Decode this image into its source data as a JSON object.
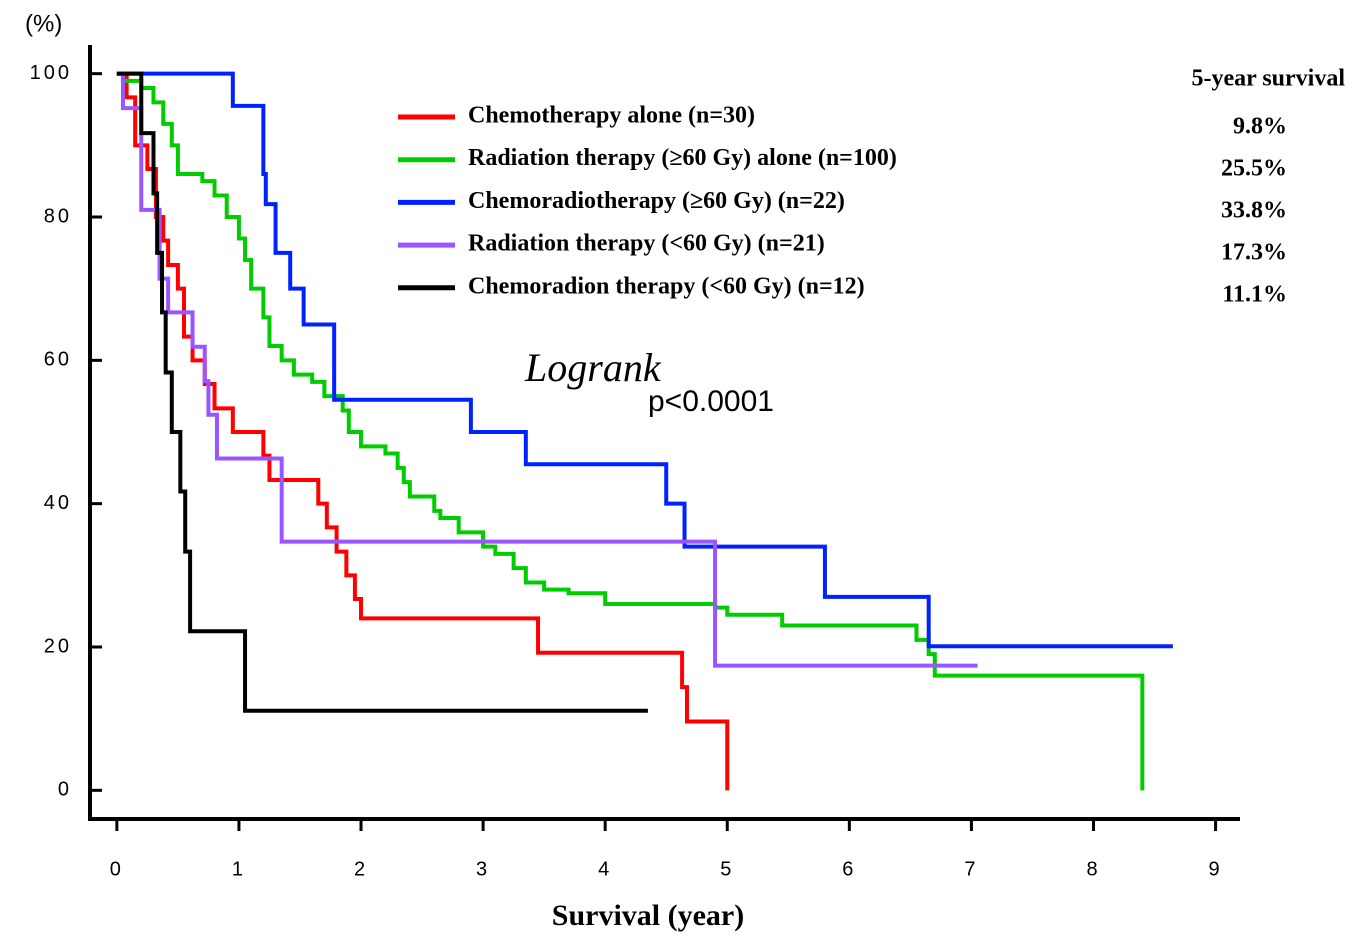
{
  "chart_data": {
    "type": "step",
    "y_label": "(%)",
    "x_label": "Survival (year)",
    "annotation_italic": "Logrank",
    "annotation": "p<0.0001",
    "xlim": [
      -0.22,
      9.2
    ],
    "ylim": [
      -4,
      104
    ],
    "xticks": [
      0,
      1,
      2,
      3,
      4,
      5,
      6,
      7,
      8,
      9
    ],
    "yticks": [
      0,
      20,
      40,
      60,
      80,
      100
    ],
    "five_year_survival": {
      "title": "5-year survival",
      "labels": [
        "9.8%",
        "25.5%",
        "33.8%",
        "17.3%",
        "11.1%"
      ]
    },
    "series": [
      {
        "name": "Chemotherapy alone (n=30)",
        "color": "#ff0000",
        "x": [
          0,
          0.08,
          0.15,
          0.25,
          0.32,
          0.38,
          0.42,
          0.5,
          0.55,
          0.62,
          0.72,
          0.8,
          0.95,
          1.2,
          1.25,
          1.65,
          1.72,
          1.8,
          1.88,
          1.95,
          2.0,
          3.45,
          4.63,
          4.67,
          5.0
        ],
        "values": [
          100,
          96.7,
          90,
          86.7,
          80,
          76.7,
          73.3,
          70,
          63.3,
          60,
          56.7,
          53.3,
          50,
          46.7,
          43.3,
          40,
          36.7,
          33.3,
          30,
          26.7,
          24,
          19.2,
          14.4,
          9.6,
          0
        ]
      },
      {
        "name": "Radiation therapy (≥60 Gy) alone (n=100)",
        "color": "#00cc00",
        "x": [
          0,
          0.05,
          0.2,
          0.3,
          0.38,
          0.45,
          0.5,
          0.7,
          0.8,
          0.9,
          1.0,
          1.05,
          1.1,
          1.2,
          1.25,
          1.35,
          1.45,
          1.6,
          1.7,
          1.85,
          1.9,
          2.0,
          2.2,
          2.3,
          2.35,
          2.4,
          2.6,
          2.65,
          2.8,
          3.0,
          3.1,
          3.25,
          3.35,
          3.5,
          3.7,
          4.0,
          4.9,
          5.0,
          5.45,
          6.55,
          6.65,
          6.7,
          8.4
        ],
        "values": [
          100,
          99,
          98,
          96,
          93,
          90,
          86,
          85,
          83,
          80,
          77,
          74,
          70,
          66,
          62,
          60,
          58,
          57,
          55,
          53,
          50,
          48,
          47,
          45,
          43,
          41,
          39,
          38,
          36,
          34,
          33,
          31,
          29,
          28,
          27.5,
          26,
          25.5,
          24.5,
          23,
          21,
          19,
          16,
          0
        ]
      },
      {
        "name": "Chemoradiotherapy (≥60 Gy) (n=22)",
        "color": "#0022ff",
        "x": [
          0,
          0.95,
          1.2,
          1.22,
          1.3,
          1.42,
          1.53,
          1.78,
          2.9,
          3.35,
          4.5,
          4.65,
          5.8,
          6.65,
          8.65
        ],
        "values": [
          100,
          95.5,
          86,
          81.8,
          75,
          70,
          65,
          54.5,
          50,
          45.5,
          40,
          34,
          27,
          20.1,
          20.1
        ]
      },
      {
        "name": "Radiation therapy (<60 Gy) (n=21)",
        "color": "#9955ff",
        "x": [
          0,
          0.05,
          0.2,
          0.35,
          0.42,
          0.62,
          0.72,
          0.75,
          0.82,
          1.35,
          4.9,
          7.05
        ],
        "values": [
          100,
          95.2,
          81,
          71.4,
          66.7,
          61.9,
          57.1,
          52.4,
          46.3,
          34.7,
          17.4,
          17.4
        ]
      },
      {
        "name": "Chemoradion therapy (<60 Gy) (n=12)",
        "color": "#000000",
        "x": [
          0,
          0.2,
          0.3,
          0.33,
          0.37,
          0.4,
          0.45,
          0.52,
          0.56,
          0.6,
          1.05,
          4.35
        ],
        "values": [
          100,
          91.7,
          83.3,
          75,
          66.7,
          58.3,
          50,
          41.7,
          33.3,
          22.2,
          11.1,
          11.1
        ]
      }
    ]
  }
}
